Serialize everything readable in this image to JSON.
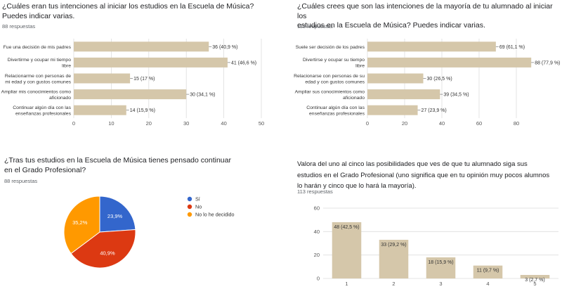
{
  "colors": {
    "bar": "#d5c7aa",
    "grid": "#dddddd",
    "axis_text": "#555555",
    "pie": [
      "#3366cc",
      "#dc3912",
      "#ff9900"
    ]
  },
  "chart_data": [
    {
      "type": "bar",
      "orientation": "horizontal",
      "title_lines": [
        "¿Cuáles eran tus intenciones al iniciar los estudios en la Escuela de Música?",
        "Puedes indicar varias."
      ],
      "responses": "88 respuestas",
      "categories": [
        [
          "Fue una decisión de mis padres"
        ],
        [
          "Divertirme y ocupar mi tiempo",
          "libre"
        ],
        [
          "Relacionarme con personas de",
          "mi edad y con gustos comunes"
        ],
        [
          "Ampliar mis conocimientos como",
          "aficionado"
        ],
        [
          "Continuar algún día con las",
          "enseñanzas profesionales"
        ]
      ],
      "values": [
        36,
        41,
        15,
        30,
        14
      ],
      "labels": [
        "36 (40,9 %)",
        "41 (46,6 %)",
        "15 (17 %)",
        "30 (34,1 %)",
        "14 (15,9 %)"
      ],
      "xticks": [
        0,
        10,
        20,
        30,
        40,
        50
      ],
      "xlim": [
        0,
        50
      ],
      "grid": true
    },
    {
      "type": "bar",
      "orientation": "horizontal",
      "title_lines": [
        "¿Cuáles crees que son las intenciones de la mayoría de tu alumnado al iniciar los",
        "estudios en la Escuela de Música? Puedes indicar  varias."
      ],
      "responses": "113 respuestas",
      "categories": [
        [
          "Suele ser decisión de los padres"
        ],
        [
          "Divertirse y ocupar su tiempo",
          "libre"
        ],
        [
          "Relacionarse con personas de su",
          "edad y con gustos comunes"
        ],
        [
          "Ampliar sus conocimientos como",
          "aficionado"
        ],
        [
          "Continuar algún día con las",
          "enseñanzas profesionales"
        ]
      ],
      "values": [
        69,
        88,
        30,
        39,
        27
      ],
      "labels": [
        "69 (61,1 %)",
        "88 (77,9 %)",
        "30 (26,5 %)",
        "39 (34,5 %)",
        "27 (23,9 %)"
      ],
      "xticks": [
        0,
        20,
        40,
        60,
        80
      ],
      "xlim": [
        0,
        100
      ],
      "grid": true
    },
    {
      "type": "pie",
      "title_lines": [
        "¿Tras tus estudios en la Escuela de Música tienes pensado  continuar",
        "en el Grado Profesional?"
      ],
      "responses": "88 respuestas",
      "labels": [
        "Sí",
        "No",
        "No lo he decidido"
      ],
      "values": [
        23.9,
        40.9,
        35.2
      ],
      "slice_labels": [
        "23,9%",
        "40,9%",
        "35,2%"
      ],
      "legend": "right"
    },
    {
      "type": "bar",
      "orientation": "vertical",
      "title_lines": [
        "Valora del uno al cinco las posibilidades que ves de que tu alumnado siga sus",
        "estudios en el Grado Profesional (uno significa que en tu opinión muy pocos alumnos",
        "lo harán y cinco que lo hará la mayoría)."
      ],
      "responses": "113 respuestas",
      "categories": [
        "1",
        "2",
        "3",
        "4",
        "5"
      ],
      "values": [
        48,
        33,
        18,
        11,
        3
      ],
      "labels": [
        "48 (42,5 %)",
        "33 (29,2 %)",
        "18 (15,9 %)",
        "11 (9,7 %)",
        "3 (2,7 %)"
      ],
      "yticks": [
        0,
        20,
        40,
        60
      ],
      "ylim": [
        0,
        60
      ],
      "grid": true
    }
  ]
}
